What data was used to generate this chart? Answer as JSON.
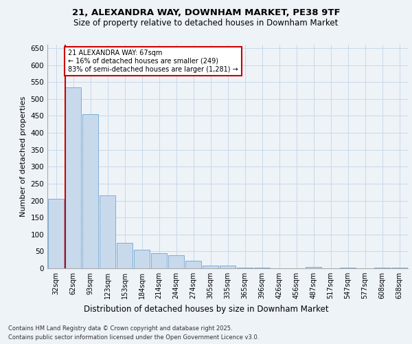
{
  "title_line1": "21, ALEXANDRA WAY, DOWNHAM MARKET, PE38 9TF",
  "title_line2": "Size of property relative to detached houses in Downham Market",
  "xlabel": "Distribution of detached houses by size in Downham Market",
  "ylabel": "Number of detached properties",
  "footer_line1": "Contains HM Land Registry data © Crown copyright and database right 2025.",
  "footer_line2": "Contains public sector information licensed under the Open Government Licence v3.0.",
  "categories": [
    "32sqm",
    "62sqm",
    "93sqm",
    "123sqm",
    "153sqm",
    "184sqm",
    "214sqm",
    "244sqm",
    "274sqm",
    "305sqm",
    "335sqm",
    "365sqm",
    "396sqm",
    "426sqm",
    "456sqm",
    "487sqm",
    "517sqm",
    "547sqm",
    "577sqm",
    "608sqm",
    "638sqm"
  ],
  "values": [
    205,
    535,
    455,
    215,
    75,
    55,
    45,
    38,
    22,
    8,
    8,
    3,
    3,
    0,
    0,
    5,
    0,
    3,
    0,
    3,
    3
  ],
  "bar_color": "#c9d9ec",
  "bar_edge_color": "#7aaed6",
  "grid_color": "#c8d8e8",
  "background_color": "#eef3f8",
  "vline_color": "#cc0000",
  "vline_x": 0.55,
  "annotation_text": "21 ALEXANDRA WAY: 67sqm\n← 16% of detached houses are smaller (249)\n83% of semi-detached houses are larger (1,281) →",
  "annotation_box_color": "#ffffff",
  "annotation_border_color": "#cc0000",
  "ylim": [
    0,
    660
  ],
  "yticks": [
    0,
    50,
    100,
    150,
    200,
    250,
    300,
    350,
    400,
    450,
    500,
    550,
    600,
    650
  ]
}
